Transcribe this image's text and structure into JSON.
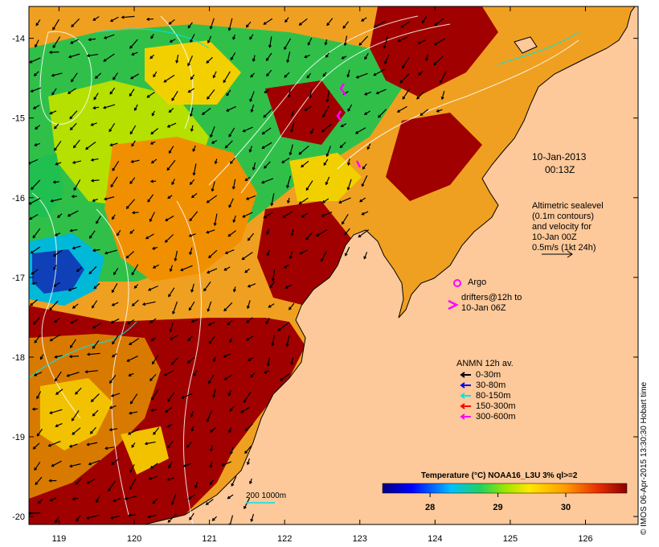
{
  "map": {
    "date_line1": "10-Jan-2013",
    "date_line2": "00:13Z",
    "altimetry": {
      "line1": "Altimetric sealevel",
      "line2": "(0.1m contours)",
      "line3": "and velocity for",
      "line4": "10-Jan 00Z",
      "line5": "0.5m/s (1kt 24h)"
    },
    "argo_label": "Argo",
    "drifters": {
      "line1": "drifters@12h to",
      "line2": "10-Jan 06Z"
    },
    "anmn": {
      "title": "ANMN 12h av.",
      "items": [
        {
          "label": "0-30m",
          "color": "#000000"
        },
        {
          "label": "30-80m",
          "color": "#0000ff"
        },
        {
          "label": "80-150m",
          "color": "#00e5e5"
        },
        {
          "label": "150-300m",
          "color": "#ff0000"
        },
        {
          "label": "300-600m",
          "color": "#ff00ff"
        }
      ]
    },
    "depth_label": "200  1000m",
    "colorbar": {
      "title": "Temperature (°C) NOAA16_L3U 3% ql>=2",
      "ticks": [
        "28",
        "29",
        "30"
      ],
      "tick_values": [
        28,
        29,
        30
      ],
      "range": [
        27.3,
        30.9
      ]
    },
    "axes": {
      "x_ticks": [
        "119",
        "120",
        "121",
        "122",
        "123",
        "124",
        "125",
        "126"
      ],
      "y_ticks": [
        "-14",
        "-15",
        "-16",
        "-17",
        "-18",
        "-19",
        "-20"
      ],
      "lon_range": [
        118.6,
        126.7
      ],
      "lat_range": [
        -13.6,
        -20.1
      ]
    },
    "watermark": "© IMOS 06-Apr-2015 13:30:30 Hobart time",
    "colors": {
      "land": "#fdc99a",
      "hot": "#a00000",
      "warm": "#f08c00",
      "yellow": "#f2d000",
      "green": "#22c24a",
      "cyan": "#00b8d8",
      "blue": "#0a3ab5"
    }
  }
}
